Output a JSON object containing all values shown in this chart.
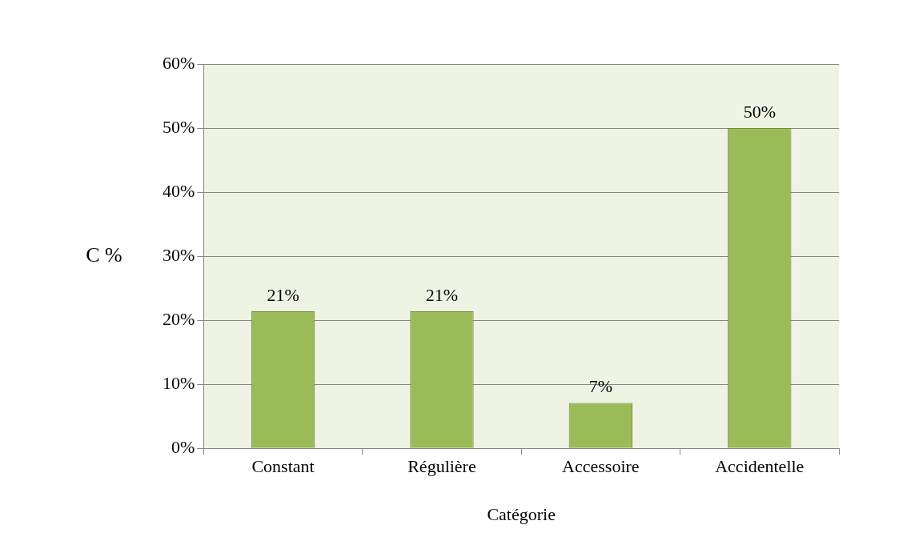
{
  "chart_data": {
    "type": "bar",
    "xlabel": "Catégorie",
    "ylabel": "C %",
    "categories": [
      "Constant",
      "Régulière",
      "Accessoire",
      "Accidentelle"
    ],
    "values": [
      21.4,
      21.4,
      7.1,
      50
    ],
    "value_labels": [
      "21%",
      "21%",
      "7%",
      "50%"
    ],
    "color": "#9bbb59",
    "ylim": [
      0,
      60
    ],
    "yticks": [
      {
        "value": 0,
        "label": "0%"
      },
      {
        "value": 10,
        "label": "10%"
      },
      {
        "value": 20,
        "label": "20%"
      },
      {
        "value": 30,
        "label": "30%"
      },
      {
        "value": 40,
        "label": "40%"
      },
      {
        "value": 50,
        "label": "50%"
      },
      {
        "value": 60,
        "label": "60%"
      }
    ],
    "grid": "y",
    "legend": false
  }
}
